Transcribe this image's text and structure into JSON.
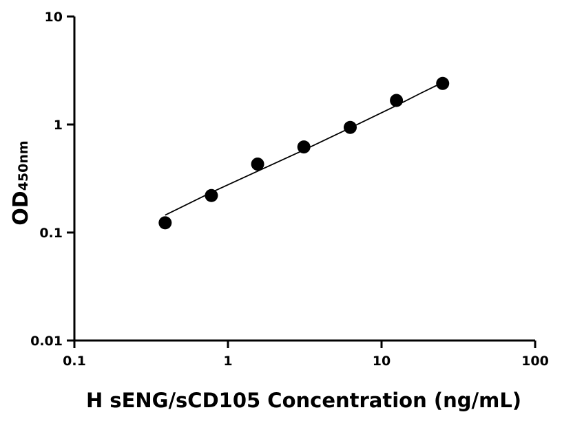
{
  "chart_data": {
    "type": "scatter",
    "title": "",
    "xlabel": "H sENG/sCD105 Concentration (ng/mL)",
    "ylabel": "OD",
    "ylabel_subscript": "450nm",
    "xscale": "log",
    "yscale": "log",
    "xlim": [
      0.1,
      100
    ],
    "ylim": [
      0.01,
      10
    ],
    "grid": false,
    "legend": "none",
    "x_ticks": [
      {
        "value": 0.1,
        "label": "0.1"
      },
      {
        "value": 1,
        "label": "1"
      },
      {
        "value": 10,
        "label": "10"
      },
      {
        "value": 100,
        "label": "100"
      }
    ],
    "y_ticks": [
      {
        "value": 0.01,
        "label": "0.01"
      },
      {
        "value": 0.1,
        "label": "0.1"
      },
      {
        "value": 1,
        "label": "1"
      },
      {
        "value": 10,
        "label": "10"
      }
    ],
    "series": [
      {
        "x": [
          0.39,
          0.78,
          1.56,
          3.12,
          6.25,
          12.5,
          25
        ],
        "y": [
          0.123,
          0.22,
          0.43,
          0.62,
          0.94,
          1.67,
          2.4
        ]
      }
    ],
    "fit_curve": {
      "x": [
        0.39,
        0.78,
        1.56,
        3.12,
        6.25,
        12.5,
        18,
        25
      ],
      "y": [
        0.145,
        0.235,
        0.37,
        0.58,
        0.93,
        1.5,
        1.95,
        2.45
      ]
    },
    "colors": {
      "marker": "#000000",
      "line": "#000000",
      "axis": "#000000"
    }
  }
}
